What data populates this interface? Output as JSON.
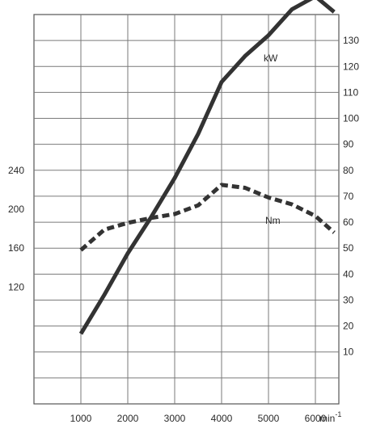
{
  "chart_data": {
    "type": "line",
    "x_tick_labels": [
      "1000",
      "2000",
      "3000",
      "4000",
      "5000",
      "6000"
    ],
    "x_unit": {
      "base": "min",
      "exponent": "-1"
    },
    "xlim": [
      0,
      6500
    ],
    "left_axis": {
      "tick_values": [
        120,
        160,
        200,
        240
      ],
      "tick_labels": [
        "120",
        "160",
        "200",
        "240"
      ],
      "ylim": [
        0,
        400
      ]
    },
    "right_axis": {
      "tick_values": [
        10,
        20,
        30,
        40,
        50,
        60,
        70,
        80,
        90,
        100,
        110,
        120,
        130
      ],
      "tick_labels": [
        "10",
        "20",
        "30",
        "40",
        "50",
        "60",
        "70",
        "80",
        "90",
        "100",
        "110",
        "120",
        "130"
      ],
      "ylim": [
        -10,
        140
      ]
    },
    "grid": true,
    "series": [
      {
        "name": "kW",
        "axis": "right",
        "style": "solid",
        "color": "#333333",
        "points": [
          [
            1000,
            17
          ],
          [
            1500,
            32
          ],
          [
            2000,
            48
          ],
          [
            2500,
            62
          ],
          [
            3000,
            77
          ],
          [
            3500,
            94
          ],
          [
            4000,
            114
          ],
          [
            4500,
            124
          ],
          [
            5000,
            132
          ],
          [
            5500,
            142
          ],
          [
            6000,
            147
          ],
          [
            6400,
            141
          ]
        ]
      },
      {
        "name": "Nm",
        "axis": "left",
        "style": "dashed",
        "color": "#333333",
        "points": [
          [
            1000,
            158
          ],
          [
            1500,
            179
          ],
          [
            2000,
            186
          ],
          [
            2500,
            191
          ],
          [
            3000,
            195
          ],
          [
            3500,
            204
          ],
          [
            4000,
            225
          ],
          [
            4500,
            222
          ],
          [
            5000,
            212
          ],
          [
            5500,
            205
          ],
          [
            6000,
            193
          ],
          [
            6400,
            176
          ]
        ]
      }
    ]
  }
}
